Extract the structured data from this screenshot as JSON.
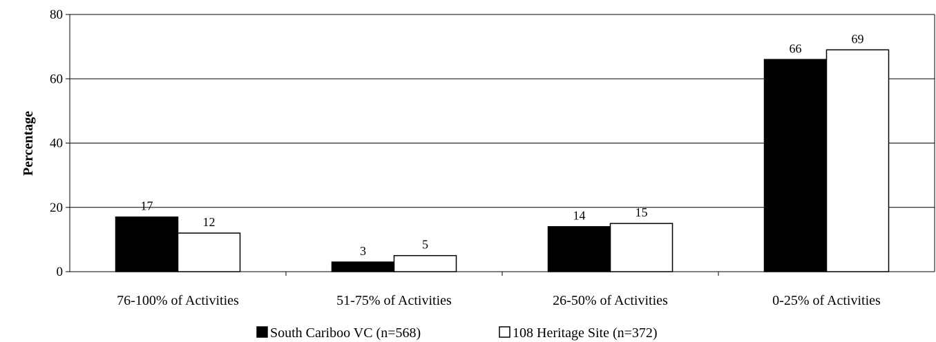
{
  "chart_data": {
    "type": "bar",
    "ylabel": "Percentage",
    "xlabel": "",
    "ylim": [
      0,
      80
    ],
    "yticks": [
      "0",
      "20",
      "40",
      "60",
      "80"
    ],
    "grid": true,
    "legend_position": "bottom",
    "categories": [
      "76-100% of Activities",
      "51-75% of Activities",
      "26-50% of Activities",
      "0-25% of Activities"
    ],
    "series": [
      {
        "name": "South Cariboo VC (n=568)",
        "color": "#000000",
        "values": [
          17,
          3,
          14,
          66
        ],
        "labels": [
          "17",
          "3",
          "14",
          "66"
        ]
      },
      {
        "name": "108 Heritage Site (n=372)",
        "color": "#ffffff",
        "values": [
          12,
          5,
          15,
          69
        ],
        "labels": [
          "12",
          "5",
          "15",
          "69"
        ]
      }
    ]
  }
}
